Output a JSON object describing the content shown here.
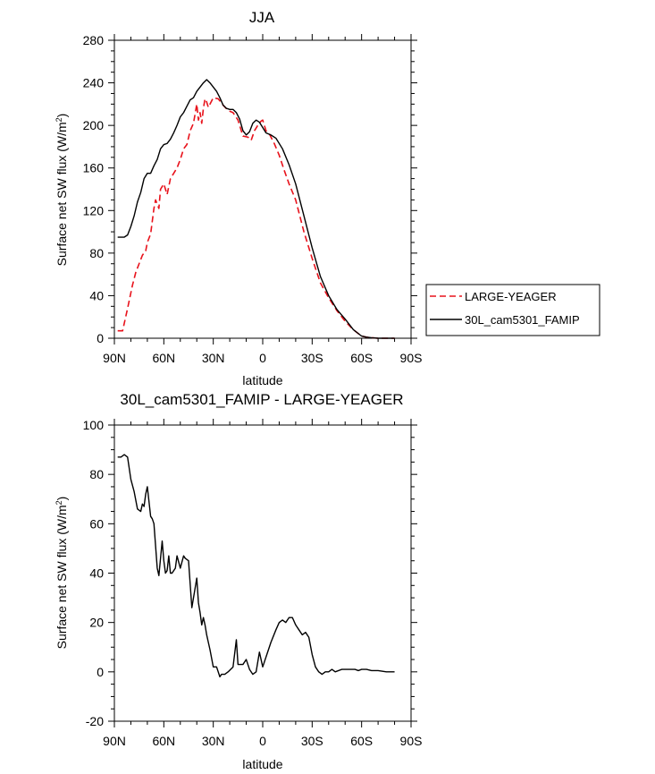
{
  "colors": {
    "series_black": "#000000",
    "series_red": "#e8121b"
  },
  "chart_data": [
    {
      "type": "line",
      "title": "JJA",
      "xlabel": "latitude",
      "ylabel": "Surface net SW flux (W/m²)",
      "ylabel_main": "Surface net SW flux (W/m",
      "ylabel_sup": "2",
      "ylabel_end": ")",
      "xlim": [
        90,
        -90
      ],
      "ylim": [
        0,
        280
      ],
      "xticks": [
        90,
        60,
        30,
        0,
        -30,
        -60,
        -90
      ],
      "xticklabels": [
        "90N",
        "60N",
        "30N",
        "0",
        "30S",
        "60S",
        "90S"
      ],
      "yticks": [
        0,
        40,
        80,
        120,
        160,
        200,
        240,
        280
      ],
      "yticklabels": [
        "0",
        "40",
        "80",
        "120",
        "160",
        "200",
        "240",
        "280"
      ],
      "legend_placement": "right",
      "series": [
        {
          "name": "LARGE-YEAGER",
          "style": "dashed",
          "color": "#e8121b",
          "x": [
            88,
            85,
            82,
            79,
            77,
            75,
            73,
            71,
            70,
            68,
            66,
            65,
            63,
            62,
            60,
            58,
            56,
            54,
            52,
            50,
            48,
            46,
            44,
            42,
            40,
            39,
            38,
            37,
            36,
            35,
            34,
            33,
            32,
            30,
            27,
            24,
            21,
            18,
            15,
            12,
            9,
            7,
            5,
            3,
            1,
            0,
            -2,
            -4,
            -7,
            -10,
            -13,
            -16,
            -20,
            -25,
            -30,
            -35,
            -40,
            -45,
            -50,
            -55,
            -60,
            -63,
            -66,
            -70,
            -75,
            -80
          ],
          "y": [
            7,
            7,
            28,
            50,
            62,
            70,
            78,
            82,
            90,
            98,
            122,
            130,
            122,
            140,
            145,
            135,
            150,
            155,
            160,
            168,
            178,
            182,
            195,
            202,
            220,
            205,
            212,
            202,
            216,
            225,
            222,
            217,
            220,
            226,
            225,
            219,
            214,
            212,
            205,
            190,
            189,
            186,
            195,
            200,
            204,
            205,
            195,
            192,
            183,
            172,
            158,
            145,
            130,
            100,
            75,
            52,
            38,
            26,
            16,
            8,
            2,
            1,
            0.5,
            0,
            0,
            0
          ]
        },
        {
          "name": "30L_cam5301_FAMIP",
          "style": "solid",
          "color": "#000000",
          "x": [
            88,
            84,
            82,
            80,
            78,
            76,
            74,
            72,
            70,
            68,
            66,
            64,
            62,
            60,
            58,
            56,
            54,
            52,
            50,
            48,
            46,
            44,
            42,
            40,
            38,
            36,
            34,
            32,
            30,
            28,
            26,
            24,
            22,
            20,
            18,
            16,
            14,
            12,
            10,
            8,
            6,
            4,
            2,
            0,
            -2,
            -5,
            -8,
            -12,
            -16,
            -20,
            -25,
            -30,
            -35,
            -40,
            -45,
            -50,
            -55,
            -60,
            -63,
            -66,
            -70,
            -75,
            -80
          ],
          "y": [
            95,
            95,
            97,
            105,
            115,
            128,
            137,
            150,
            155,
            155,
            162,
            168,
            178,
            182,
            183,
            187,
            193,
            200,
            208,
            212,
            218,
            224,
            226,
            232,
            236,
            240,
            243,
            240,
            236,
            232,
            226,
            219,
            216,
            215,
            215,
            212,
            206,
            195,
            191,
            194,
            202,
            205,
            203,
            198,
            193,
            191,
            188,
            178,
            163,
            145,
            115,
            85,
            58,
            40,
            27,
            18,
            8,
            2,
            1,
            0.5,
            0,
            0,
            0
          ]
        }
      ]
    },
    {
      "type": "line",
      "title": "30L_cam5301_FAMIP - LARGE-YEAGER",
      "xlabel": "latitude",
      "ylabel": "Surface net SW flux (W/m²)",
      "ylabel_main": "Surface net SW flux (W/m",
      "ylabel_sup": "2",
      "ylabel_end": ")",
      "xlim": [
        90,
        -90
      ],
      "ylim": [
        -20,
        100
      ],
      "xticks": [
        90,
        60,
        30,
        0,
        -30,
        -60,
        -90
      ],
      "xticklabels": [
        "90N",
        "60N",
        "30N",
        "0",
        "30S",
        "60S",
        "90S"
      ],
      "yticks": [
        -20,
        0,
        20,
        40,
        60,
        80,
        100
      ],
      "yticklabels": [
        "-20",
        "0",
        "20",
        "40",
        "60",
        "80",
        "100"
      ],
      "series": [
        {
          "style": "solid",
          "color": "#000000",
          "x": [
            88,
            86,
            84,
            82,
            80,
            78,
            76,
            74,
            73,
            72,
            71,
            70,
            68,
            67,
            66,
            64,
            63,
            61,
            60,
            59,
            58,
            57,
            56,
            55,
            53,
            52,
            50,
            48,
            47,
            45,
            43,
            40,
            39,
            38,
            37,
            36,
            35,
            34,
            33,
            32,
            30,
            28,
            26,
            25,
            23,
            21,
            18,
            16,
            15,
            14,
            12,
            10,
            8,
            6,
            4,
            2,
            0,
            -1,
            -3,
            -5,
            -8,
            -10,
            -12,
            -14,
            -16,
            -18,
            -20,
            -22,
            -24,
            -26,
            -28,
            -30,
            -32,
            -34,
            -36,
            -38,
            -40,
            -42,
            -44,
            -48,
            -50,
            -52,
            -54,
            -56,
            -58,
            -60,
            -63,
            -66,
            -70,
            -75,
            -80
          ],
          "y": [
            87,
            87,
            88,
            87,
            78,
            73,
            66,
            65,
            68,
            67,
            72,
            75,
            63,
            62,
            60,
            42,
            39,
            53,
            45,
            40,
            41,
            47,
            40,
            40,
            42,
            47,
            42,
            47,
            46,
            45,
            26,
            38,
            28,
            24,
            19,
            22,
            19,
            15,
            12,
            9,
            2,
            2,
            -2,
            -1,
            -1,
            0,
            2,
            13,
            3,
            3,
            3,
            5,
            1,
            -1,
            0,
            8,
            2,
            4,
            8,
            12,
            17,
            20,
            21,
            20,
            22,
            22,
            19,
            17,
            15,
            16,
            14,
            7,
            2,
            0,
            -1,
            0,
            0,
            1,
            0,
            1,
            1,
            1,
            1,
            1,
            0.5,
            1,
            1,
            0.5,
            0.5,
            0,
            0
          ]
        }
      ]
    }
  ]
}
